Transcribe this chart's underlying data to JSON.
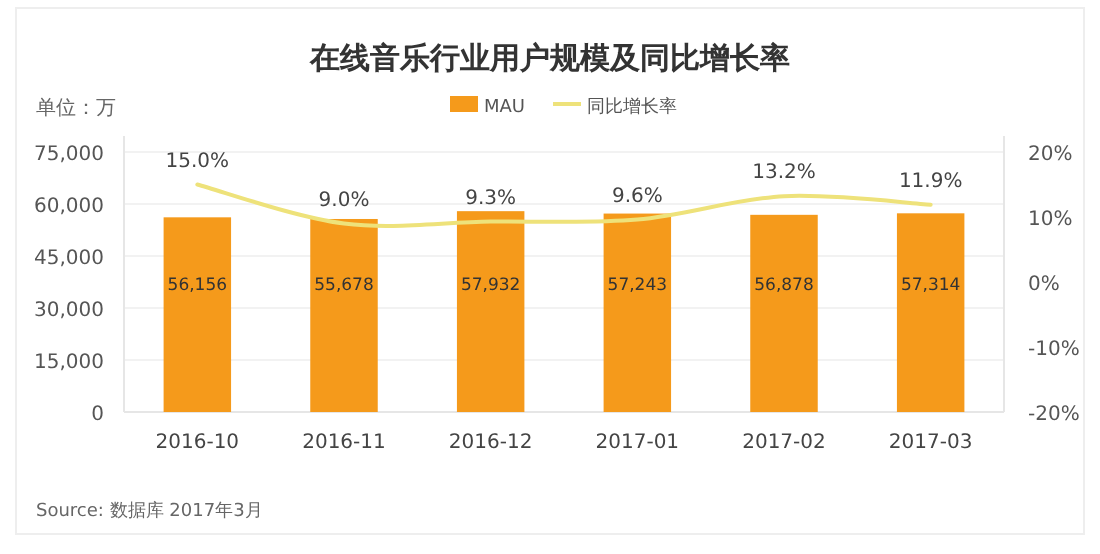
{
  "chart_data": {
    "type": "bar",
    "title": "在线音乐行业用户规模及同比增长率",
    "ylabel": "单位：万",
    "categories": [
      "2016-10",
      "2016-11",
      "2016-12",
      "2017-01",
      "2017-02",
      "2017-03"
    ],
    "series": [
      {
        "name": "MAU",
        "color": "#f59a1b",
        "values": [
          56156,
          55678,
          57932,
          57243,
          56878,
          57314
        ],
        "value_labels": [
          "56,156",
          "55,678",
          "57,932",
          "57,243",
          "56,878",
          "57,314"
        ]
      },
      {
        "name": "同比增长率",
        "type": "line",
        "axis": "y2",
        "color": "#eee27a",
        "values": [
          15.0,
          9.0,
          9.3,
          9.6,
          13.2,
          11.9
        ],
        "value_labels": [
          "15.0%",
          "9.0%",
          "9.3%",
          "9.6%",
          "13.2%",
          "11.9%"
        ]
      }
    ],
    "ylim": [
      0,
      75000
    ],
    "yticks": [
      {
        "value": 0,
        "label": "0"
      },
      {
        "value": 15000,
        "label": "15,000"
      },
      {
        "value": 30000,
        "label": "30,000"
      },
      {
        "value": 45000,
        "label": "45,000"
      },
      {
        "value": 60000,
        "label": "60,000"
      },
      {
        "value": 75000,
        "label": "75,000"
      }
    ],
    "y2lim": [
      -20,
      20
    ],
    "y2ticks": [
      {
        "value": -20,
        "label": "-20%"
      },
      {
        "value": -10,
        "label": "-10%"
      },
      {
        "value": 0,
        "label": "0%"
      },
      {
        "value": 10,
        "label": "10%"
      },
      {
        "value": 20,
        "label": "20%"
      }
    ],
    "grid": "y",
    "legend": "top",
    "marker": "none",
    "line_style": "solid",
    "annotations": [
      "Source: 数据库 2017年3月"
    ]
  }
}
